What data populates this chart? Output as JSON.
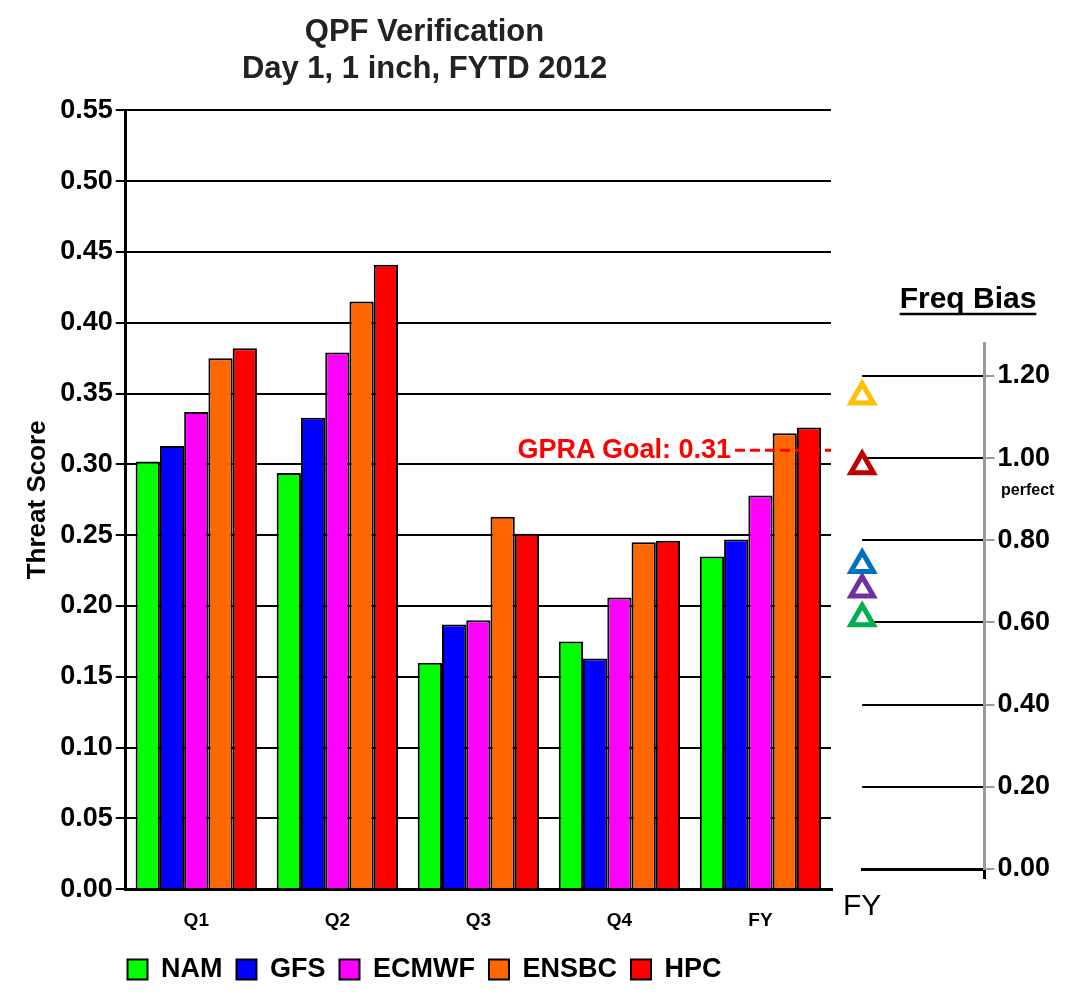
{
  "chart_data": [
    {
      "type": "bar",
      "title": "QPF Verification",
      "subtitle": "Day 1, 1 inch, FYTD 2012",
      "ylabel": "Threat Score",
      "categories": [
        "Q1",
        "Q2",
        "Q3",
        "Q4",
        "FY"
      ],
      "series": [
        {
          "name": "NAM",
          "color": "#00ff00",
          "values": [
            0.302,
            0.294,
            0.16,
            0.175,
            0.235
          ]
        },
        {
          "name": "GFS",
          "color": "#0000ff",
          "values": [
            0.313,
            0.333,
            0.187,
            0.163,
            0.247
          ]
        },
        {
          "name": "ECMWF",
          "color": "#ff00ff",
          "values": [
            0.337,
            0.379,
            0.19,
            0.206,
            0.278
          ]
        },
        {
          "name": "ENSBC",
          "color": "#ff6600",
          "values": [
            0.375,
            0.415,
            0.263,
            0.245,
            0.322
          ]
        },
        {
          "name": "HPC",
          "color": "#ff0000",
          "values": [
            0.382,
            0.441,
            0.251,
            0.246,
            0.326
          ]
        }
      ],
      "ylim": [
        0,
        0.55
      ],
      "yticks": [
        {
          "value": 0,
          "label": "0.00"
        },
        {
          "value": 0.05,
          "label": "0.05"
        },
        {
          "value": 0.1,
          "label": "0.10"
        },
        {
          "value": 0.15,
          "label": "0.15"
        },
        {
          "value": 0.2,
          "label": "0.20"
        },
        {
          "value": 0.25,
          "label": "0.25"
        },
        {
          "value": 0.3,
          "label": "0.30"
        },
        {
          "value": 0.35,
          "label": "0.35"
        },
        {
          "value": 0.4,
          "label": "0.40"
        },
        {
          "value": 0.45,
          "label": "0.45"
        },
        {
          "value": 0.5,
          "label": "0.50"
        },
        {
          "value": 0.55,
          "label": "0.55"
        }
      ],
      "ref_lines": [
        {
          "axis": "y",
          "value": 0.31,
          "label": "GPRA Goal: 0.31",
          "color": "#ff0000",
          "line_style": "dashed"
        }
      ],
      "grid": "y",
      "legend": "bottom"
    },
    {
      "type": "scatter",
      "title": "Freq Bias",
      "categories": [
        "FY"
      ],
      "marker": "triangle",
      "series": [
        {
          "color": "#ffc000",
          "values": [
            1.15
          ],
          "x": [
            "FY"
          ]
        },
        {
          "color": "#c00000",
          "values": [
            0.98
          ],
          "x": [
            "FY"
          ]
        },
        {
          "color": "#0070c0",
          "values": [
            0.74
          ],
          "x": [
            "FY"
          ]
        },
        {
          "color": "#7030a0",
          "values": [
            0.68
          ],
          "x": [
            "FY"
          ]
        },
        {
          "color": "#00b050",
          "values": [
            0.61
          ],
          "x": [
            "FY"
          ]
        }
      ],
      "ylim": [
        0,
        1.28
      ],
      "yticks": [
        {
          "value": 0,
          "label": "0.00"
        },
        {
          "value": 0.2,
          "label": "0.20"
        },
        {
          "value": 0.4,
          "label": "0.40"
        },
        {
          "value": 0.6,
          "label": "0.60"
        },
        {
          "value": 0.8,
          "label": "0.80"
        },
        {
          "value": 1,
          "label": "1.00"
        },
        {
          "value": 1.2,
          "label": "1.20"
        }
      ],
      "annotations": [
        "perfect"
      ],
      "grid": "y"
    }
  ]
}
